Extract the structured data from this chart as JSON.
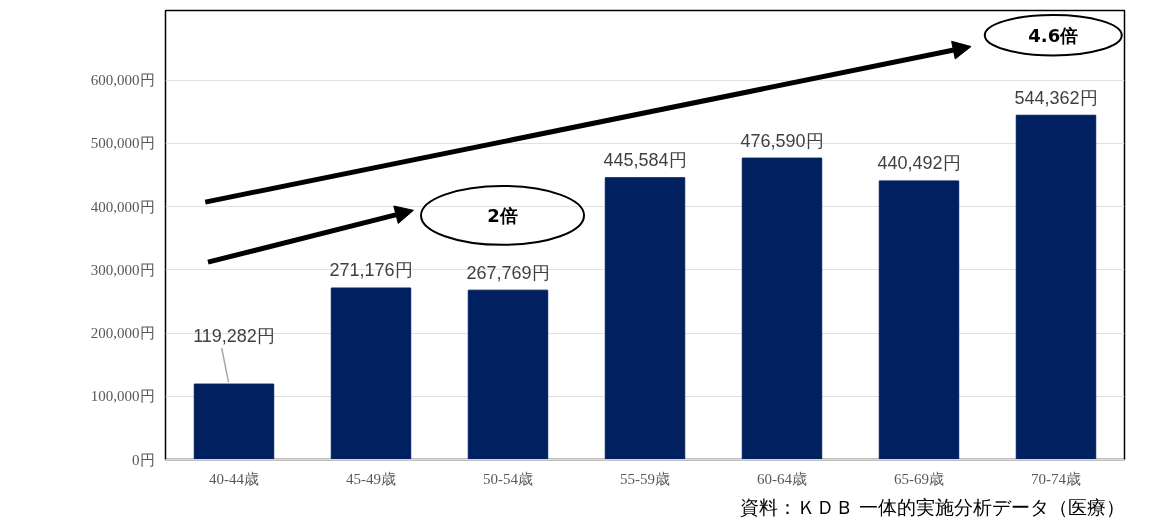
{
  "chart_data": {
    "type": "bar",
    "categories": [
      "40-44歳",
      "45-49歳",
      "50-54歳",
      "55-59歳",
      "60-64歳",
      "65-69歳",
      "70-74歳"
    ],
    "values": [
      119282,
      271176,
      267769,
      445584,
      476590,
      440492,
      544362
    ],
    "value_labels": [
      "119,282円",
      "271,176円",
      "267,769円",
      "445,584円",
      "476,590円",
      "440,492円",
      "544,362円"
    ],
    "color": "#002060",
    "ylim": [
      0,
      710000
    ],
    "yticks": [
      {
        "value": 0,
        "label": "0円"
      },
      {
        "value": 100000,
        "label": "100,000円"
      },
      {
        "value": 200000,
        "label": "200,000円"
      },
      {
        "value": 300000,
        "label": "300,000円"
      },
      {
        "value": 400000,
        "label": "400,000円"
      },
      {
        "value": 500000,
        "label": "500,000円"
      },
      {
        "value": 600000,
        "label": "600,000円"
      }
    ],
    "grid": "y",
    "annotations": [
      "2倍",
      "4.6倍",
      "資料：ＫＤＢ 一体的実施分析データ（医療）"
    ]
  }
}
